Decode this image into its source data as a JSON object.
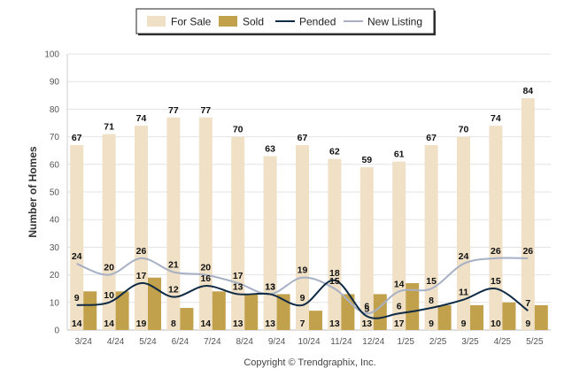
{
  "chart_data": {
    "type": "bar",
    "categories": [
      "3/24",
      "4/24",
      "5/24",
      "6/24",
      "7/24",
      "8/24",
      "9/24",
      "10/24",
      "11/24",
      "12/24",
      "1/25",
      "2/25",
      "3/25",
      "4/25",
      "5/25"
    ],
    "ylabel": "Number of Homes",
    "xlabel": "",
    "ylim": [
      0,
      100
    ],
    "yticks": [
      0,
      10,
      20,
      30,
      40,
      50,
      60,
      70,
      80,
      90,
      100
    ],
    "grid": true,
    "legend_position": "top",
    "series": [
      {
        "name": "For Sale",
        "kind": "bar",
        "color": "#EFE0C6",
        "values": [
          67,
          71,
          74,
          77,
          77,
          70,
          63,
          67,
          62,
          59,
          61,
          67,
          70,
          74,
          84
        ]
      },
      {
        "name": "Sold",
        "kind": "bar",
        "color": "#C2A14D",
        "values": [
          14,
          14,
          19,
          8,
          14,
          13,
          13,
          7,
          13,
          13,
          17,
          9,
          9,
          10,
          9
        ]
      },
      {
        "name": "Pended",
        "kind": "line",
        "color": "#0F2A44",
        "values": [
          9,
          10,
          17,
          12,
          16,
          13,
          13,
          9,
          18,
          5,
          6,
          8,
          11,
          15,
          7
        ]
      },
      {
        "name": "New Listing",
        "kind": "line",
        "color": "#A7B0C4",
        "values": [
          24,
          20,
          26,
          21,
          20,
          17,
          13,
          19,
          15,
          6,
          14,
          15,
          24,
          26,
          26
        ]
      }
    ],
    "copyright": "Copyright © Trendgraphix, Inc."
  }
}
